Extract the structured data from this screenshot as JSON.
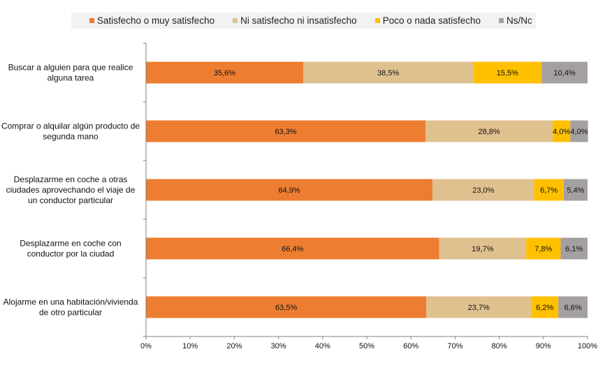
{
  "chart_data": {
    "type": "bar",
    "orientation": "horizontal",
    "stacked": true,
    "percent_stacked": true,
    "categories": [
      "Buscar a alguien para que realice alguna tarea",
      "Comprar o alquilar algún producto de segunda mano",
      "Desplazarme en coche a otras ciudades aprovechando el viaje de un conductor particular",
      "Desplazarme en coche con conductor por la ciudad",
      "Alojarme en una habitación/vivienda de otro particular"
    ],
    "category_lines": [
      [
        "Buscar a alguien para que realice",
        "alguna tarea"
      ],
      [
        "Comprar o alquilar algún producto de",
        "segunda mano"
      ],
      [
        "Desplazarme en coche a otras",
        "ciudades aprovechando el viaje de",
        "un conductor particular"
      ],
      [
        "Desplazarme en coche con",
        "conductor por la ciudad"
      ],
      [
        "Alojarme en una habitación/vivienda",
        "de otro particular"
      ]
    ],
    "series": [
      {
        "name": "Satisfecho o muy satisfecho",
        "color": "#ed7d31",
        "values": [
          35.6,
          63.3,
          64.9,
          66.4,
          63.5
        ],
        "labels": [
          "35,6%",
          "63,3%",
          "64,9%",
          "66,4%",
          "63,5%"
        ]
      },
      {
        "name": "Ni satisfecho ni insatisfecho",
        "color": "#dfc18f",
        "values": [
          38.5,
          28.8,
          23.0,
          19.7,
          23.7
        ],
        "labels": [
          "38,5%",
          "28,8%",
          "23,0%",
          "19,7%",
          "23,7%"
        ]
      },
      {
        "name": "Poco o nada satisfecho",
        "color": "#ffc000",
        "values": [
          15.5,
          4.0,
          6.7,
          7.8,
          6.2
        ],
        "labels": [
          "15,5%",
          "4,0%",
          "6,7%",
          "7,8%",
          "6,2%"
        ]
      },
      {
        "name": "Ns/Nc",
        "color": "#a5a0a0",
        "values": [
          10.4,
          4.0,
          5.4,
          6.1,
          6.6
        ],
        "labels": [
          "10,4%",
          "4,0%",
          "5,4%",
          "6,1%",
          "6,6%"
        ]
      }
    ],
    "x_ticks": [
      "0%",
      "10%",
      "20%",
      "30%",
      "40%",
      "50%",
      "60%",
      "70%",
      "80%",
      "90%",
      "100%"
    ],
    "xlim": [
      0,
      100
    ],
    "grid": false,
    "legend_position": "top"
  }
}
